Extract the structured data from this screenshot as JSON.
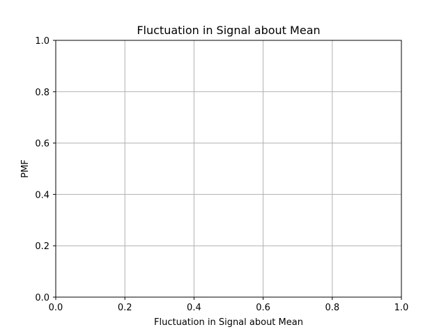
{
  "chart_data": {
    "type": "line",
    "title": "Fluctuation in Signal about Mean",
    "xlabel": "Fluctuation in Signal about Mean",
    "ylabel": "PMF",
    "xlim": [
      0.0,
      1.0
    ],
    "ylim": [
      0.0,
      1.0
    ],
    "xticks": [
      0.0,
      0.2,
      0.4,
      0.6,
      0.8,
      1.0
    ],
    "yticks": [
      0.0,
      0.2,
      0.4,
      0.6,
      0.8,
      1.0
    ],
    "xtick_labels": [
      "0.0",
      "0.2",
      "0.4",
      "0.6",
      "0.8",
      "1.0"
    ],
    "ytick_labels": [
      "0.0",
      "0.2",
      "0.4",
      "0.6",
      "0.8",
      "1.0"
    ],
    "grid": true,
    "series": []
  }
}
